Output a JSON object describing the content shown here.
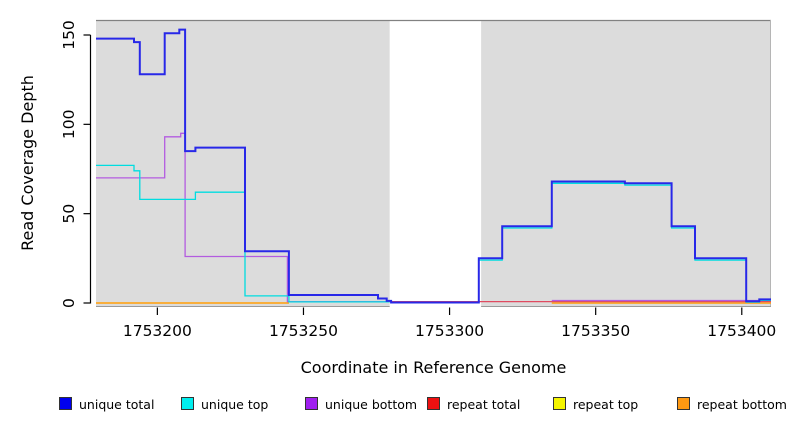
{
  "chart_data": {
    "type": "line",
    "subtype": "step-coverage-plot",
    "title": "",
    "xlabel": "Coordinate in Reference Genome",
    "ylabel": "Read Coverage Depth",
    "xlim": [
      1753179,
      1753410
    ],
    "ylim": [
      -2.2,
      158.4
    ],
    "x_ticks": [
      1753200,
      1753250,
      1753300,
      1753350,
      1753400
    ],
    "y_ticks": [
      0,
      50,
      100,
      150
    ],
    "grid": false,
    "panel_bg": "#dcdcdc",
    "gap_band": {
      "from": 1753279.5,
      "to": 1753310.8,
      "color": "#ffffff"
    },
    "legend_position": "bottom",
    "series": [
      {
        "name": "unique total",
        "color": "#2828e8",
        "swatch": "#0000ee",
        "line_width": 2,
        "steps": [
          [
            1753179,
            148
          ],
          [
            1753192,
            146
          ],
          [
            1753194,
            128
          ],
          [
            1753202.5,
            151
          ],
          [
            1753207.5,
            153
          ],
          [
            1753209.5,
            85
          ],
          [
            1753213,
            87
          ],
          [
            1753230,
            29
          ],
          [
            1753245,
            4.5
          ],
          [
            1753275.5,
            2.5
          ],
          [
            1753278.5,
            1.2
          ],
          [
            1753280,
            0.3
          ],
          [
            1753310,
            25
          ],
          [
            1753318,
            43
          ],
          [
            1753335,
            68
          ],
          [
            1753360,
            67
          ],
          [
            1753376,
            43
          ],
          [
            1753384,
            25
          ],
          [
            1753401.5,
            1
          ],
          [
            1753406,
            2
          ],
          [
            1753410,
            2
          ]
        ]
      },
      {
        "name": "unique top",
        "color": "#00dde0",
        "swatch": "#00eeee",
        "line_width": 1.3,
        "steps": [
          [
            1753179,
            77
          ],
          [
            1753192,
            74
          ],
          [
            1753194,
            58
          ],
          [
            1753213,
            62
          ],
          [
            1753230,
            4
          ],
          [
            1753245,
            0.6
          ],
          [
            1753279.5,
            null
          ],
          [
            1753310,
            24
          ],
          [
            1753318,
            42
          ],
          [
            1753335,
            67
          ],
          [
            1753360,
            66
          ],
          [
            1753376,
            42
          ],
          [
            1753384,
            24
          ],
          [
            1753401.5,
            0.5
          ],
          [
            1753406,
            1.5
          ],
          [
            1753410,
            1.5
          ]
        ]
      },
      {
        "name": "unique bottom",
        "color": "#b35ce0",
        "swatch": "#a020f0",
        "line_width": 1.3,
        "steps": [
          [
            1753179,
            70
          ],
          [
            1753202.5,
            93
          ],
          [
            1753208,
            95
          ],
          [
            1753209.5,
            26
          ],
          [
            1753244.5,
            0.8
          ],
          [
            1753279.5,
            null
          ],
          [
            1753335,
            1.4
          ],
          [
            1753406,
            2
          ],
          [
            1753410,
            2
          ]
        ]
      },
      {
        "name": "repeat total",
        "color": "#e04a60",
        "swatch": "#ee1111",
        "line_width": 1.2,
        "steps": [
          [
            1753244.5,
            0.8
          ],
          [
            1753410,
            0.8
          ]
        ]
      },
      {
        "name": "repeat top",
        "color": "#f0e000",
        "swatch": "#f5f500",
        "line_width": 1.2,
        "steps": [
          [
            1753179,
            0
          ],
          [
            1753245,
            null
          ],
          [
            1753335,
            0
          ],
          [
            1753410,
            0
          ]
        ]
      },
      {
        "name": "repeat bottom",
        "color": "#ff9e1b",
        "swatch": "#ff9912",
        "line_width": 1.6,
        "steps": [
          [
            1753179,
            0
          ],
          [
            1753245,
            null
          ],
          [
            1753335,
            0
          ],
          [
            1753410,
            0
          ]
        ]
      }
    ],
    "draw_order": [
      "repeat top",
      "repeat bottom",
      "repeat total",
      "unique bottom",
      "unique top",
      "unique total"
    ]
  }
}
